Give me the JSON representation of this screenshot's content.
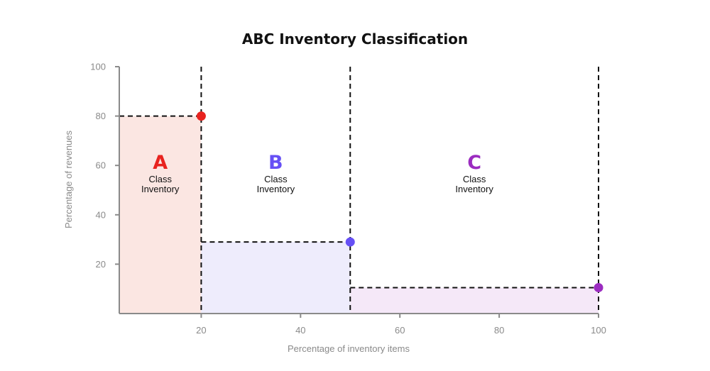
{
  "chart_data": {
    "type": "area",
    "title": "ABC Inventory Classification",
    "xlabel": "Percentage of inventory items",
    "ylabel": "Percentage of revenues",
    "xlim": [
      3.5,
      100
    ],
    "ylim": [
      0,
      100
    ],
    "x_ticks": [
      20,
      40,
      60,
      80,
      100
    ],
    "y_ticks": [
      20,
      40,
      60,
      80,
      100
    ],
    "series": [
      {
        "class": "A",
        "subtitle": "Class",
        "subtitle2": "Inventory",
        "x_start": 3.5,
        "x_end": 20,
        "y": 80,
        "color": "#e8231f",
        "fill": "#fbe6e2"
      },
      {
        "class": "B",
        "subtitle": "Class",
        "subtitle2": "Inventory",
        "x_start": 20,
        "x_end": 50,
        "y": 29,
        "color": "#6650f5",
        "fill": "#eeecfc"
      },
      {
        "class": "C",
        "subtitle": "Class",
        "subtitle2": "Inventory",
        "x_start": 50,
        "x_end": 100,
        "y": 10.5,
        "color": "#9b2cc0",
        "fill": "#f5e8f8"
      }
    ],
    "boundaries": [
      20,
      50,
      100
    ],
    "grid": false
  }
}
